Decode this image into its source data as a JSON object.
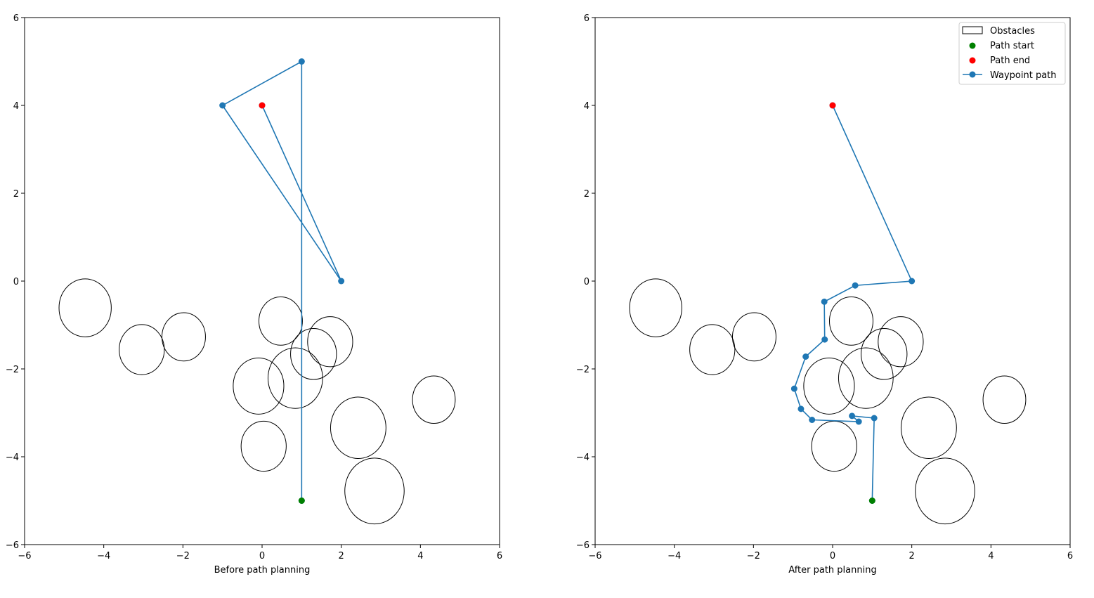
{
  "colors": {
    "path": "#1f77b4",
    "start": "#008000",
    "end": "#ff0000",
    "obstacle_edge": "#000000"
  },
  "chart_data": [
    {
      "type": "line",
      "xlabel": "Before path planning",
      "ylabel": "",
      "xlim": [
        -6,
        6
      ],
      "ylim": [
        -6,
        6
      ],
      "xticks": [
        "−6",
        "−4",
        "−2",
        "0",
        "2",
        "4",
        "6"
      ],
      "yticks": [
        "−6",
        "−4",
        "−2",
        "0",
        "2",
        "4",
        "6"
      ],
      "grid": false,
      "legend": null,
      "obstacles": [
        {
          "cx": -4.47,
          "cy": -0.61,
          "rx": 0.66,
          "ry": 0.66
        },
        {
          "cx": -3.04,
          "cy": -1.56,
          "rx": 0.57,
          "ry": 0.57
        },
        {
          "cx": -1.98,
          "cy": -1.27,
          "rx": 0.55,
          "ry": 0.55
        },
        {
          "cx": 0.47,
          "cy": -0.91,
          "rx": 0.55,
          "ry": 0.55
        },
        {
          "cx": 1.72,
          "cy": -1.38,
          "rx": 0.57,
          "ry": 0.57
        },
        {
          "cx": 1.3,
          "cy": -1.66,
          "rx": 0.58,
          "ry": 0.58
        },
        {
          "cx": 0.84,
          "cy": -2.21,
          "rx": 0.69,
          "ry": 0.69
        },
        {
          "cx": -0.09,
          "cy": -2.39,
          "rx": 0.64,
          "ry": 0.64
        },
        {
          "cx": 4.34,
          "cy": -2.7,
          "rx": 0.54,
          "ry": 0.54
        },
        {
          "cx": 2.43,
          "cy": -3.34,
          "rx": 0.7,
          "ry": 0.7
        },
        {
          "cx": 0.04,
          "cy": -3.76,
          "rx": 0.57,
          "ry": 0.57
        },
        {
          "cx": 2.84,
          "cy": -4.78,
          "rx": 0.75,
          "ry": 0.75
        }
      ],
      "series": [
        {
          "kind": "line",
          "x": [
            1,
            1,
            -1,
            2,
            0
          ],
          "y": [
            -5,
            5,
            4,
            0,
            4
          ]
        }
      ],
      "start": {
        "x": 1,
        "y": -5
      },
      "end": {
        "x": 0,
        "y": 4
      }
    },
    {
      "type": "line",
      "xlabel": "After path planning",
      "ylabel": "",
      "xlim": [
        -6,
        6
      ],
      "ylim": [
        -6,
        6
      ],
      "xticks": [
        "−6",
        "−4",
        "−2",
        "0",
        "2",
        "4",
        "6"
      ],
      "yticks": [
        "−6",
        "−4",
        "−2",
        "0",
        "2",
        "4",
        "6"
      ],
      "grid": false,
      "legend": {
        "position": "top-right",
        "entries": [
          "Obstacles",
          "Path start",
          "Path end",
          "Waypoint path"
        ]
      },
      "obstacles": [
        {
          "cx": -4.47,
          "cy": -0.61,
          "rx": 0.66,
          "ry": 0.66
        },
        {
          "cx": -3.04,
          "cy": -1.56,
          "rx": 0.57,
          "ry": 0.57
        },
        {
          "cx": -1.98,
          "cy": -1.27,
          "rx": 0.55,
          "ry": 0.55
        },
        {
          "cx": 0.47,
          "cy": -0.91,
          "rx": 0.55,
          "ry": 0.55
        },
        {
          "cx": 1.72,
          "cy": -1.38,
          "rx": 0.57,
          "ry": 0.57
        },
        {
          "cx": 1.3,
          "cy": -1.66,
          "rx": 0.58,
          "ry": 0.58
        },
        {
          "cx": 0.84,
          "cy": -2.21,
          "rx": 0.69,
          "ry": 0.69
        },
        {
          "cx": -0.09,
          "cy": -2.39,
          "rx": 0.64,
          "ry": 0.64
        },
        {
          "cx": 4.34,
          "cy": -2.7,
          "rx": 0.54,
          "ry": 0.54
        },
        {
          "cx": 2.43,
          "cy": -3.34,
          "rx": 0.7,
          "ry": 0.7
        },
        {
          "cx": 0.04,
          "cy": -3.76,
          "rx": 0.57,
          "ry": 0.57
        },
        {
          "cx": 2.84,
          "cy": -4.78,
          "rx": 0.75,
          "ry": 0.75
        }
      ],
      "series": [
        {
          "kind": "line",
          "name": "Waypoint path",
          "x": [
            1.0,
            1.05,
            0.49,
            0.66,
            -0.52,
            -0.8,
            -0.97,
            -0.68,
            -0.2,
            -0.21,
            0.57,
            2.0,
            0.0
          ],
          "y": [
            -5.0,
            -3.12,
            -3.07,
            -3.2,
            -3.16,
            -2.91,
            -2.45,
            -1.72,
            -1.33,
            -0.47,
            -0.1,
            0.0,
            4.0
          ]
        }
      ],
      "start": {
        "x": 1,
        "y": -5
      },
      "end": {
        "x": 0,
        "y": 4
      }
    }
  ]
}
